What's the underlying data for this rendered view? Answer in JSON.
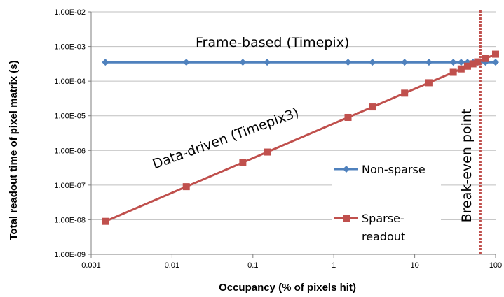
{
  "chart_data": {
    "type": "line",
    "xscale": "log",
    "yscale": "log",
    "xlabel": "Occupancy (% of pixels hit)",
    "ylabel": "Total readout time of pixel matrix (s)",
    "xlim": [
      0.001,
      100
    ],
    "ylim": [
      1e-09,
      0.01
    ],
    "x_ticks": [
      "0.001",
      "0.01",
      "0.1",
      "1",
      "10",
      "100"
    ],
    "y_ticks": [
      "1.00E-09",
      "1.00E-08",
      "1.00E-07",
      "1.00E-06",
      "1.00E-05",
      "1.00E-04",
      "1.00E-03",
      "1.00E-02"
    ],
    "grid": "horizontal",
    "colors": {
      "non_sparse": "#4f81bd",
      "sparse": "#c0504d",
      "break_even": "#c0504d"
    },
    "series": [
      {
        "name": "Non-sparse",
        "marker": "diamond",
        "x": [
          0.0015,
          0.015,
          0.075,
          0.15,
          1.5,
          3,
          7.5,
          15,
          30,
          37.5,
          45,
          52.5,
          60,
          75,
          100
        ],
        "y": [
          0.00035,
          0.00035,
          0.00035,
          0.00035,
          0.00035,
          0.00035,
          0.00035,
          0.00035,
          0.00035,
          0.00035,
          0.00035,
          0.00035,
          0.00035,
          0.00035,
          0.00035
        ]
      },
      {
        "name": "Sparse-readout",
        "legend_lines": [
          "Sparse-",
          "readout"
        ],
        "marker": "square",
        "x": [
          0.0015,
          0.015,
          0.075,
          0.15,
          1.5,
          3,
          7.5,
          15,
          30,
          37.5,
          45,
          52.5,
          60,
          75,
          100
        ],
        "y": [
          9e-09,
          9e-08,
          4.5e-07,
          9e-07,
          9e-06,
          1.8e-05,
          4.5e-05,
          9e-05,
          0.00018,
          0.000225,
          0.00027,
          0.000315,
          0.00036,
          0.00045,
          0.0006
        ]
      }
    ],
    "annotations": {
      "frame_based": "Frame-based (Timepix)",
      "data_driven": "Data-driven (Timepix3)",
      "break_even": "Break-even point",
      "break_even_x": 65
    }
  }
}
